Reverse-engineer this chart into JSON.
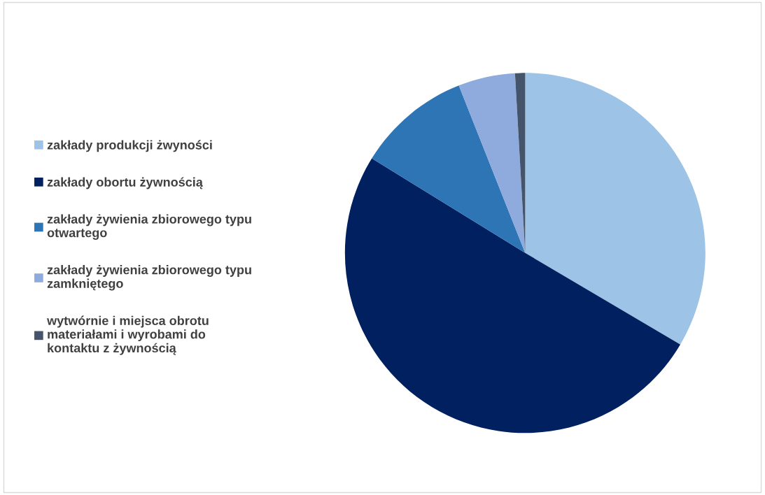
{
  "chart_data": {
    "type": "pie",
    "categories": [
      "zakłady produkcji żwyności",
      "zakłady obortu żywnością",
      "zakłady żywienia zbiorowego typu otwartego",
      "zakłady żywienia zbiorowego typu zamkniętego",
      "wytwórnie i miejsca obrotu materiałami i wyrobami do kontaktu z żywnością"
    ],
    "values": [
      33.5,
      50.3,
      10.2,
      5.1,
      0.9
    ],
    "colors": [
      "#9dc3e6",
      "#002060",
      "#2e75b6",
      "#8faadc",
      "#44546a"
    ],
    "legend": "left"
  }
}
